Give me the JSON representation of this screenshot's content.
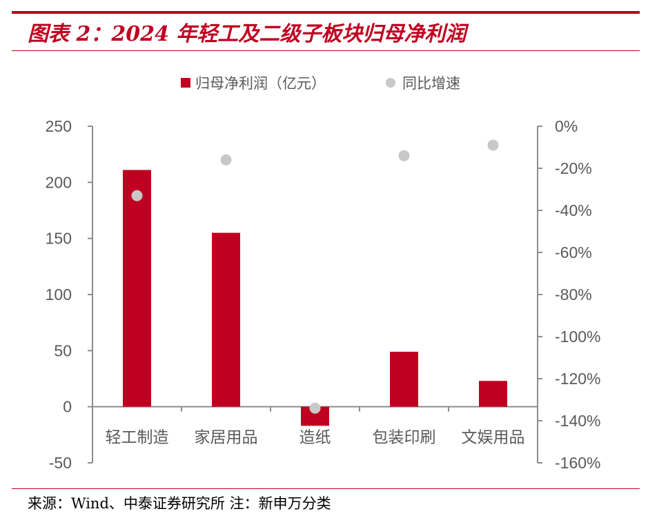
{
  "header": {
    "title": "图表 2：2024 年轻工及二级子板块归母净利润"
  },
  "footer": {
    "source": "来源：Wind、中泰证券研究所 注：新申万分类"
  },
  "colors": {
    "accent": "#c00020",
    "bar": "#c00020",
    "dot": "#c8c8c8",
    "axis": "#8c8c8c",
    "text": "#595959"
  },
  "chart_data": {
    "type": "bar",
    "categories": [
      "轻工制造",
      "家居用品",
      "造纸",
      "包装印刷",
      "文娱用品"
    ],
    "series": [
      {
        "name": "归母净利润（亿元）",
        "type": "bar",
        "axis": "left",
        "values": [
          211,
          155,
          -17,
          49,
          23
        ]
      },
      {
        "name": "同比增速",
        "type": "scatter",
        "axis": "right",
        "values": [
          -33,
          -16,
          -134,
          -14,
          -9
        ]
      }
    ],
    "left_axis": {
      "ylim": [
        -50,
        250
      ],
      "ticks": [
        "250",
        "200",
        "150",
        "100",
        "50",
        "0",
        "-50"
      ]
    },
    "right_axis": {
      "ylim": [
        -160,
        0
      ],
      "ticks": [
        "0%",
        "-20%",
        "-40%",
        "-60%",
        "-80%",
        "-100%",
        "-120%",
        "-140%",
        "-160%"
      ]
    },
    "legend_position": "top-center",
    "grid": false
  }
}
